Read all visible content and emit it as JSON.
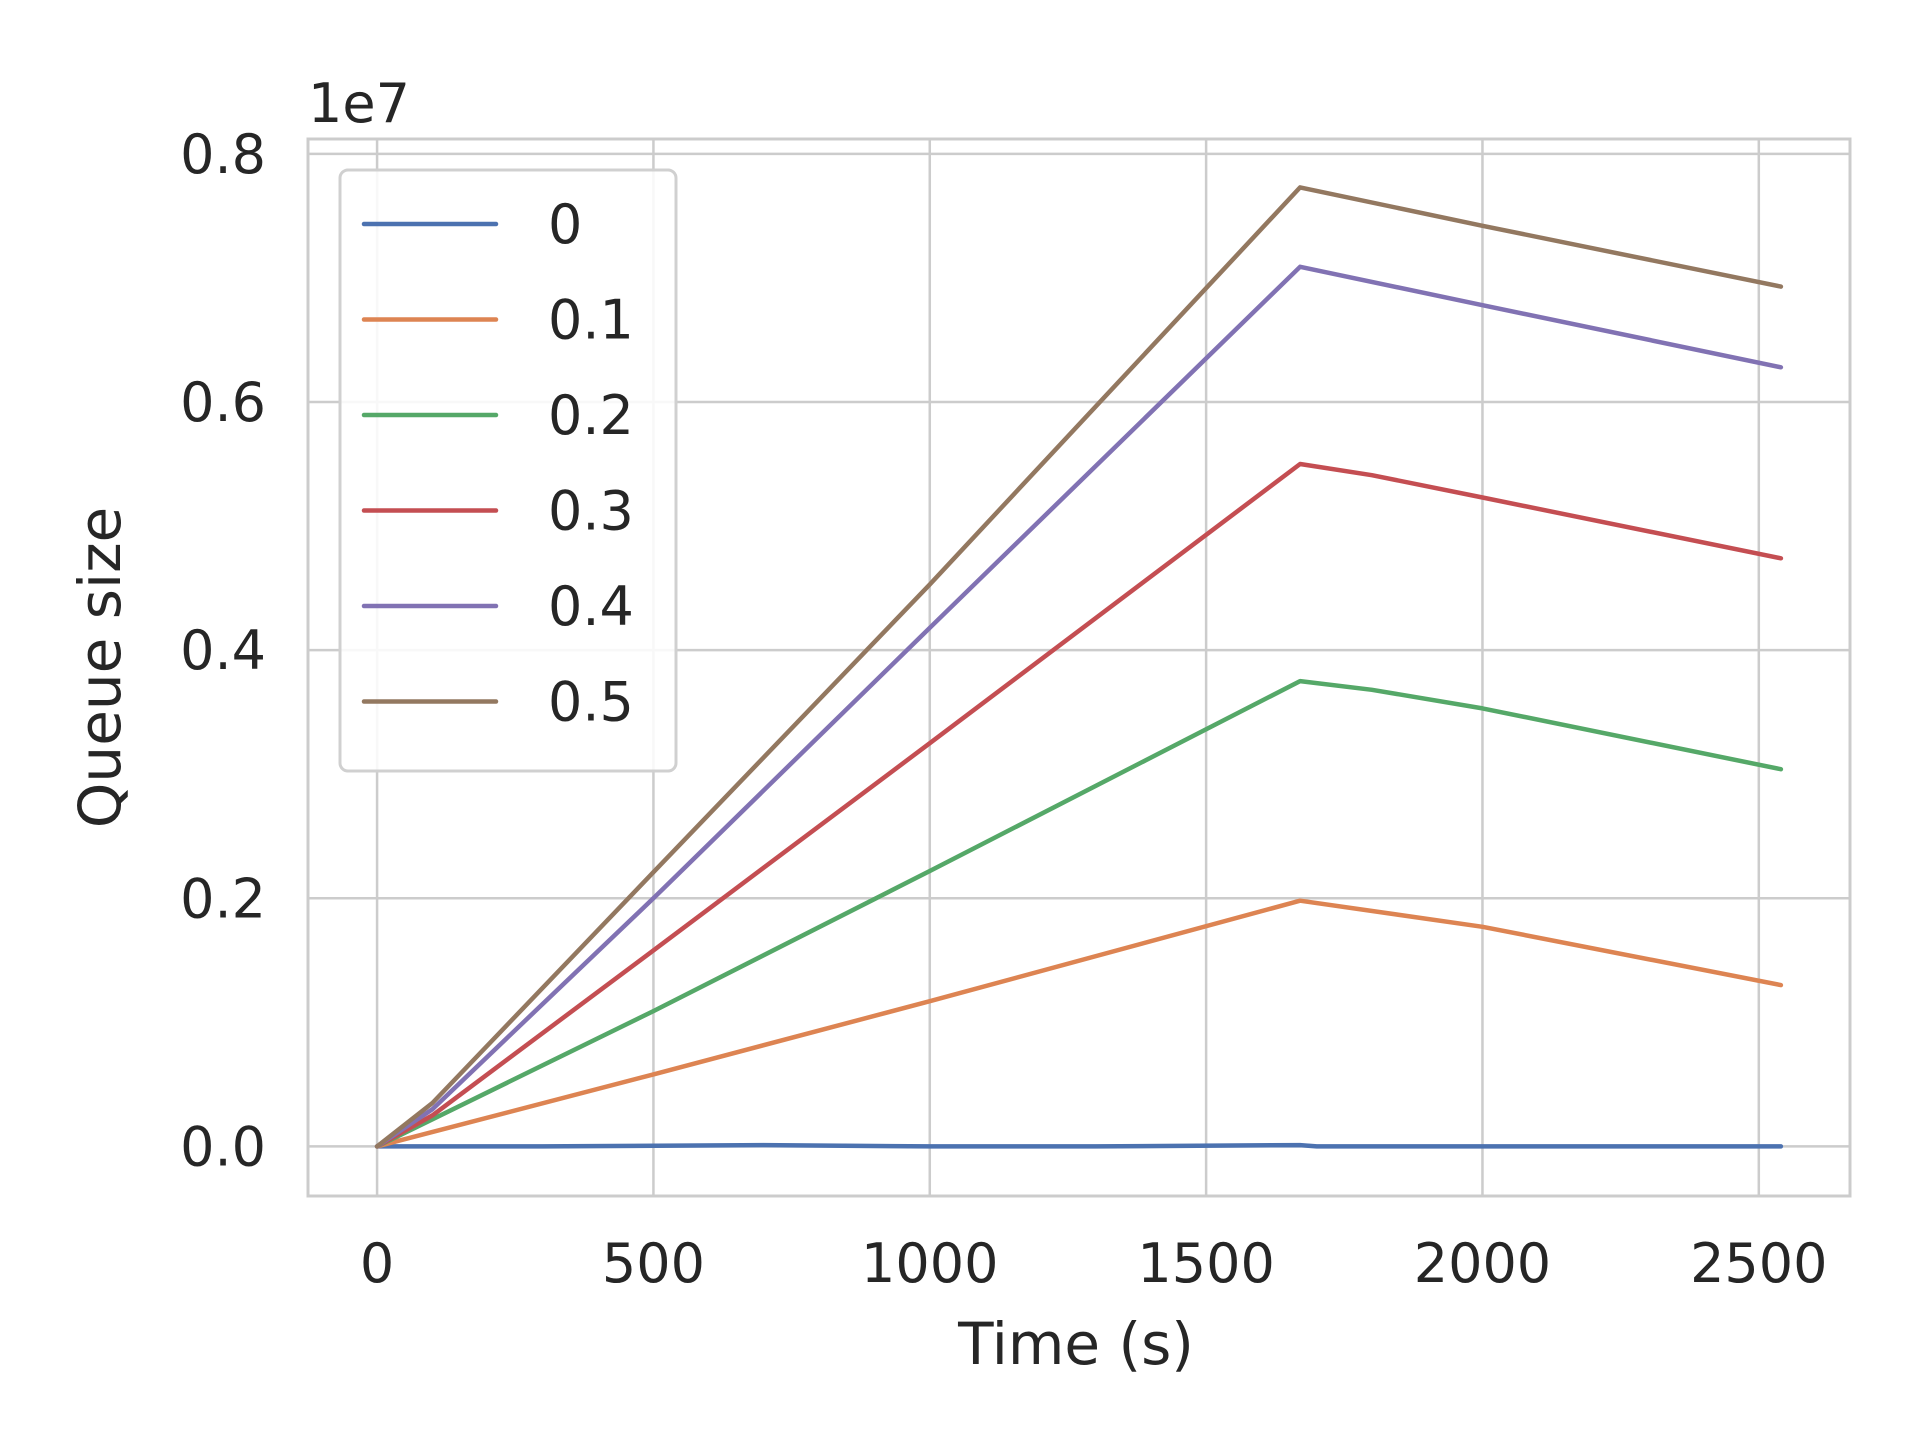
{
  "chart_data": {
    "type": "line",
    "title": "",
    "xlabel": "Time (s)",
    "ylabel": "Queue size",
    "y_offset_label": "1e7",
    "xlim": [
      -125,
      2665
    ],
    "ylim": [
      -0.04,
      0.812
    ],
    "x_ticks": [
      0,
      500,
      1000,
      1500,
      2000,
      2500
    ],
    "x_tick_labels": [
      "0",
      "500",
      "1000",
      "1500",
      "2000",
      "2500"
    ],
    "y_ticks": [
      0.0,
      0.2,
      0.4,
      0.6,
      0.8
    ],
    "y_tick_labels": [
      "0.0",
      "0.2",
      "0.4",
      "0.6",
      "0.8"
    ],
    "grid": true,
    "legend_position": "top-left",
    "series": [
      {
        "name": "0",
        "color": "#4c72b0",
        "points": [
          [
            0,
            0.0
          ],
          [
            300,
            0.0
          ],
          [
            700,
            0.001
          ],
          [
            1000,
            0.0
          ],
          [
            1300,
            0.0
          ],
          [
            1670,
            0.001
          ],
          [
            1700,
            0.0
          ],
          [
            2000,
            0.0
          ],
          [
            2540,
            0.0
          ]
        ]
      },
      {
        "name": "0.1",
        "color": "#dd8452",
        "points": [
          [
            0,
            0.0
          ],
          [
            500,
            0.058
          ],
          [
            1000,
            0.117
          ],
          [
            1670,
            0.198
          ],
          [
            2000,
            0.177
          ],
          [
            2540,
            0.13
          ]
        ]
      },
      {
        "name": "0.2",
        "color": "#55a868",
        "points": [
          [
            0,
            0.0
          ],
          [
            500,
            0.109
          ],
          [
            1000,
            0.222
          ],
          [
            1670,
            0.375
          ],
          [
            1800,
            0.368
          ],
          [
            2000,
            0.353
          ],
          [
            2540,
            0.304
          ]
        ]
      },
      {
        "name": "0.3",
        "color": "#c44e52",
        "points": [
          [
            0,
            0.0
          ],
          [
            100,
            0.025
          ],
          [
            500,
            0.158
          ],
          [
            1000,
            0.325
          ],
          [
            1670,
            0.55
          ],
          [
            1800,
            0.541
          ],
          [
            2000,
            0.523
          ],
          [
            2540,
            0.474
          ]
        ]
      },
      {
        "name": "0.4",
        "color": "#8172b3",
        "points": [
          [
            0,
            0.0
          ],
          [
            100,
            0.03
          ],
          [
            500,
            0.2
          ],
          [
            1000,
            0.418
          ],
          [
            1670,
            0.709
          ],
          [
            2000,
            0.678
          ],
          [
            2540,
            0.628
          ]
        ]
      },
      {
        "name": "0.5",
        "color": "#937860",
        "points": [
          [
            0,
            0.0
          ],
          [
            100,
            0.035
          ],
          [
            500,
            0.221
          ],
          [
            1000,
            0.453
          ],
          [
            1670,
            0.773
          ],
          [
            2000,
            0.742
          ],
          [
            2540,
            0.693
          ]
        ]
      }
    ]
  }
}
